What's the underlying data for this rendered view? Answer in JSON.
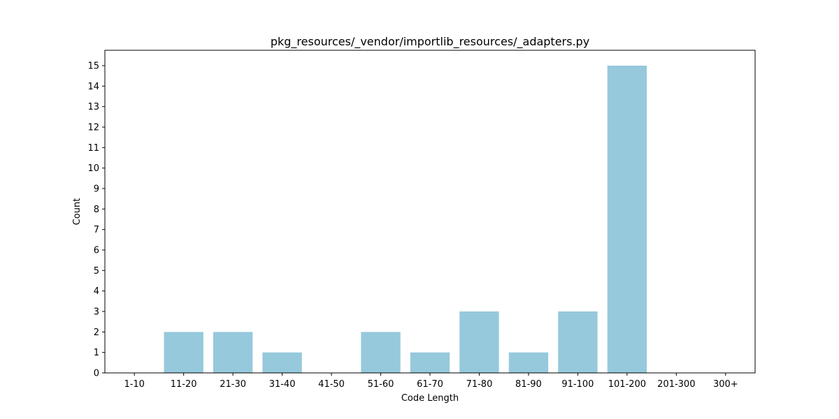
{
  "chart_data": {
    "type": "bar",
    "title": "pkg_resources/_vendor/importlib_resources/_adapters.py",
    "xlabel": "Code Length",
    "ylabel": "Count",
    "categories": [
      "1-10",
      "11-20",
      "21-30",
      "31-40",
      "41-50",
      "51-60",
      "61-70",
      "71-80",
      "81-90",
      "91-100",
      "101-200",
      "201-300",
      "300+"
    ],
    "values": [
      0,
      2,
      2,
      1,
      0,
      2,
      1,
      3,
      1,
      3,
      15,
      0,
      0
    ],
    "yticks": [
      "0",
      "1",
      "2",
      "3",
      "4",
      "5",
      "6",
      "7",
      "8",
      "9",
      "10",
      "11",
      "12",
      "13",
      "14",
      "15"
    ],
    "ylim": [
      0,
      15.75
    ],
    "bar_color": "#96c9dc",
    "grid": false,
    "legend": "none"
  }
}
